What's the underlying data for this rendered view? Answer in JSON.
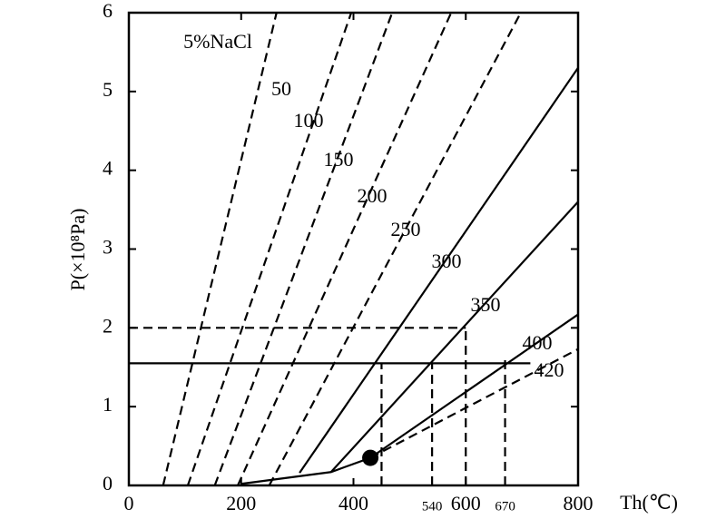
{
  "chart_data": {
    "type": "line",
    "annotation": "5%NaCl",
    "xlabel": "Th(℃)",
    "ylabel": "P(×10⁸Pa)",
    "xlim": [
      0,
      800
    ],
    "ylim": [
      0,
      6
    ],
    "xticks": [
      0,
      200,
      400,
      600,
      800
    ],
    "minor_xticks": [
      540,
      670
    ],
    "yticks": [
      0,
      1,
      2,
      3,
      4,
      5,
      6
    ],
    "series": [
      {
        "name": "50",
        "style": "dashed",
        "x": [
          61,
          263
        ],
        "values": [
          0,
          6
        ]
      },
      {
        "name": "100",
        "style": "dashed",
        "x": [
          105,
          396
        ],
        "values": [
          0,
          6
        ]
      },
      {
        "name": "150",
        "style": "dashed",
        "x": [
          153,
          469
        ],
        "values": [
          0,
          6
        ]
      },
      {
        "name": "200",
        "style": "dashed",
        "x": [
          194,
          574
        ],
        "values": [
          0,
          6
        ]
      },
      {
        "name": "250",
        "style": "dashed",
        "x": [
          250,
          698
        ],
        "values": [
          0,
          6
        ]
      },
      {
        "name": "300",
        "style": "solid",
        "x": [
          304,
          800
        ],
        "values": [
          0.16,
          5.3
        ]
      },
      {
        "name": "350",
        "style": "solid",
        "x": [
          360,
          800
        ],
        "values": [
          0.17,
          3.6
        ]
      },
      {
        "name": "400",
        "style": "solid",
        "x": [
          430,
          800
        ],
        "values": [
          0.35,
          2.17
        ]
      },
      {
        "name": "420",
        "style": "dashed",
        "x": [
          430,
          800
        ],
        "values": [
          0.35,
          1.73
        ]
      }
    ],
    "reference_lines": [
      {
        "style": "solid",
        "x": [
          200,
          360,
          430
        ],
        "values": [
          0.02,
          0.17,
          0.35
        ]
      },
      {
        "style": "dashed",
        "x": [
          0,
          600
        ],
        "values": [
          2,
          2
        ]
      },
      {
        "style": "solid",
        "x": [
          0,
          715
        ],
        "values": [
          1.55,
          1.55
        ]
      },
      {
        "style": "dashed",
        "x": [
          450,
          450
        ],
        "values": [
          0,
          1.55
        ]
      },
      {
        "style": "dashed",
        "x": [
          540,
          540
        ],
        "values": [
          0,
          1.55
        ]
      },
      {
        "style": "dashed",
        "x": [
          600,
          600
        ],
        "values": [
          0,
          2
        ]
      },
      {
        "style": "dashed",
        "x": [
          670,
          670
        ],
        "values": [
          0,
          1.6
        ]
      }
    ],
    "point": {
      "x": 430,
      "y": 0.35
    }
  }
}
